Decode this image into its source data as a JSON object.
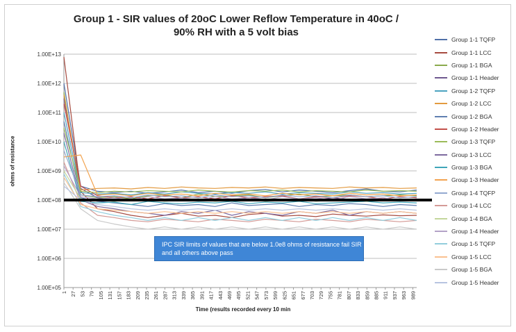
{
  "chart_data": {
    "type": "line",
    "title": "Group 1 - SIR values of 20oC Lower Reflow Temperature in 40oC / 90% RH with a 5 volt bias",
    "xlabel": "Time (results recorded  every 10 min",
    "ylabel": "ohms of resistance",
    "y_scale": "log",
    "ylim": [
      100000,
      10000000000000
    ],
    "y_ticks": [
      "1.00E+13",
      "1.00E+12",
      "1.00E+11",
      "1.00E+10",
      "1.00E+09",
      "1.00E+08",
      "1.00E+07",
      "1.00E+06",
      "1.00E+05"
    ],
    "x_ticks": [
      1,
      27,
      53,
      79,
      105,
      131,
      157,
      183,
      209,
      235,
      261,
      287,
      313,
      339,
      365,
      391,
      417,
      443,
      469,
      495,
      521,
      547,
      573,
      599,
      625,
      651,
      677,
      703,
      729,
      755,
      781,
      807,
      833,
      859,
      885,
      911,
      937,
      963,
      989
    ],
    "xlim": [
      1,
      1000
    ],
    "grid": true,
    "legend_position": "right",
    "threshold": {
      "value": 100000000
    },
    "annotation": "IPC SIR limits of values that are  below 1.0e8 ohms of resistance fail SIR and all others above pass",
    "series": [
      {
        "name": "Group 1-1 TQFP",
        "color": "#4f6fa8",
        "values": [
          1000000000000,
          300000000,
          200000000,
          180000000,
          200000000,
          170000000,
          190000000,
          220000000,
          180000000,
          200000000,
          170000000,
          210000000,
          230000000,
          190000000,
          220000000,
          200000000,
          180000000,
          210000000,
          240000000,
          200000000,
          190000000,
          220000000
        ]
      },
      {
        "name": "Group 1-1 LCC",
        "color": "#a64a3f",
        "values": [
          8000000000000,
          200000000,
          50000000,
          40000000,
          30000000,
          25000000,
          30000000,
          35000000,
          28000000,
          30000000,
          25000000,
          32000000,
          35000000,
          28000000,
          30000000,
          27000000,
          33000000,
          30000000,
          28000000,
          31000000,
          29000000,
          30000000
        ]
      },
      {
        "name": "Group 1-1 BGA",
        "color": "#8aaa4c",
        "values": [
          500000000000,
          150000000,
          120000000,
          130000000,
          110000000,
          140000000,
          150000000,
          120000000,
          160000000,
          130000000,
          140000000,
          150000000,
          120000000,
          140000000,
          160000000,
          130000000,
          140000000,
          150000000,
          130000000,
          140000000,
          150000000,
          140000000
        ]
      },
      {
        "name": "Group 1-1 Header",
        "color": "#6e578f",
        "values": [
          300000000000,
          250000000,
          120000000,
          100000000,
          110000000,
          90000000,
          100000000,
          120000000,
          95000000,
          110000000,
          100000000,
          120000000,
          105000000,
          95000000,
          110000000,
          100000000,
          120000000,
          105000000,
          95000000,
          110000000,
          100000000,
          100000000
        ]
      },
      {
        "name": "Group 1-2 TQFP",
        "color": "#4aa3c0",
        "values": [
          100000000000,
          180000000,
          160000000,
          170000000,
          150000000,
          180000000,
          160000000,
          190000000,
          170000000,
          160000000,
          180000000,
          170000000,
          190000000,
          160000000,
          180000000,
          170000000,
          160000000,
          190000000,
          170000000,
          180000000,
          160000000,
          170000000
        ]
      },
      {
        "name": "Group 1-2 LCC",
        "color": "#e39a3f",
        "values": [
          400000000000,
          220000000,
          250000000,
          260000000,
          240000000,
          270000000,
          250000000,
          280000000,
          260000000,
          250000000,
          270000000,
          260000000,
          280000000,
          250000000,
          270000000,
          260000000,
          250000000,
          280000000,
          260000000,
          270000000,
          250000000,
          260000000
        ]
      },
      {
        "name": "Group 1-2 BGA",
        "color": "#5f7fb0",
        "values": [
          50000000000,
          120000000,
          90000000,
          80000000,
          70000000,
          60000000,
          75000000,
          65000000,
          70000000,
          60000000,
          80000000,
          65000000,
          70000000,
          75000000,
          60000000,
          70000000,
          65000000,
          75000000,
          70000000,
          60000000,
          70000000,
          65000000
        ]
      },
      {
        "name": "Group 1-2 Header",
        "color": "#c24f4a",
        "values": [
          200000000000,
          300000000,
          140000000,
          120000000,
          130000000,
          110000000,
          140000000,
          120000000,
          130000000,
          110000000,
          140000000,
          120000000,
          130000000,
          140000000,
          110000000,
          130000000,
          120000000,
          140000000,
          130000000,
          110000000,
          130000000,
          120000000
        ]
      },
      {
        "name": "Group 1-3 TQFP",
        "color": "#9bbb59",
        "values": [
          30000000000,
          200000000,
          180000000,
          200000000,
          190000000,
          210000000,
          200000000,
          190000000,
          220000000,
          200000000,
          190000000,
          210000000,
          200000000,
          220000000,
          190000000,
          210000000,
          200000000,
          190000000,
          220000000,
          200000000,
          210000000,
          200000000
        ]
      },
      {
        "name": "Group 1-3 LCC",
        "color": "#7d6a9e",
        "values": [
          20000000000,
          100000000,
          60000000,
          50000000,
          40000000,
          35000000,
          30000000,
          40000000,
          35000000,
          45000000,
          30000000,
          40000000,
          35000000,
          30000000,
          40000000,
          35000000,
          45000000,
          30000000,
          40000000,
          35000000,
          40000000,
          35000000
        ]
      },
      {
        "name": "Group 1-3 BGA",
        "color": "#3fa5b8",
        "values": [
          10000000000,
          90000000,
          80000000,
          85000000,
          70000000,
          90000000,
          80000000,
          75000000,
          85000000,
          80000000,
          90000000,
          75000000,
          85000000,
          80000000,
          90000000,
          75000000,
          80000000,
          85000000,
          90000000,
          80000000,
          85000000,
          80000000
        ]
      },
      {
        "name": "Group 1-3 Header",
        "color": "#f2a34f",
        "values": [
          3000000000,
          3500000000,
          150000000,
          160000000,
          140000000,
          170000000,
          150000000,
          160000000,
          140000000,
          170000000,
          150000000,
          160000000,
          140000000,
          170000000,
          150000000,
          160000000,
          140000000,
          170000000,
          150000000,
          160000000,
          140000000,
          150000000
        ]
      },
      {
        "name": "Group 1-4 TQFP",
        "color": "#93a9d0",
        "values": [
          5000000000,
          150000000,
          130000000,
          140000000,
          120000000,
          150000000,
          130000000,
          140000000,
          120000000,
          150000000,
          130000000,
          140000000,
          120000000,
          150000000,
          130000000,
          140000000,
          120000000,
          150000000,
          130000000,
          140000000,
          120000000,
          130000000
        ]
      },
      {
        "name": "Group 1-4 LCC",
        "color": "#d49a96",
        "values": [
          2000000000,
          80000000,
          30000000,
          25000000,
          20000000,
          18000000,
          22000000,
          20000000,
          18000000,
          22000000,
          20000000,
          18000000,
          22000000,
          20000000,
          18000000,
          22000000,
          20000000,
          18000000,
          22000000,
          20000000,
          18000000,
          20000000
        ]
      },
      {
        "name": "Group 1-4 BGA",
        "color": "#c3d69b",
        "values": [
          1000000000,
          110000000,
          100000000,
          90000000,
          100000000,
          110000000,
          90000000,
          100000000,
          110000000,
          90000000,
          100000000,
          110000000,
          90000000,
          100000000,
          110000000,
          90000000,
          100000000,
          110000000,
          90000000,
          100000000,
          110000000,
          100000000
        ]
      },
      {
        "name": "Group 1-4 Header",
        "color": "#b3a2c7",
        "values": [
          1500000000,
          130000000,
          110000000,
          120000000,
          100000000,
          130000000,
          110000000,
          120000000,
          100000000,
          130000000,
          110000000,
          120000000,
          100000000,
          130000000,
          110000000,
          120000000,
          100000000,
          130000000,
          110000000,
          120000000,
          100000000,
          110000000
        ]
      },
      {
        "name": "Group 1-5 TQFP",
        "color": "#92cddc",
        "values": [
          800000000,
          60000000,
          40000000,
          30000000,
          25000000,
          20000000,
          25000000,
          20000000,
          25000000,
          20000000,
          25000000,
          20000000,
          25000000,
          20000000,
          25000000,
          20000000,
          25000000,
          20000000,
          25000000,
          20000000,
          25000000,
          20000000
        ]
      },
      {
        "name": "Group 1-5 LCC",
        "color": "#fac08f",
        "values": [
          600000000,
          70000000,
          50000000,
          45000000,
          40000000,
          35000000,
          40000000,
          35000000,
          40000000,
          35000000,
          40000000,
          35000000,
          40000000,
          35000000,
          40000000,
          35000000,
          40000000,
          35000000,
          40000000,
          35000000,
          40000000,
          35000000
        ]
      },
      {
        "name": "Group 1-5 BGA",
        "color": "#c9c9c9",
        "values": [
          400000000,
          50000000,
          20000000,
          15000000,
          12000000,
          10000000,
          12000000,
          10000000,
          12000000,
          10000000,
          12000000,
          10000000,
          12000000,
          10000000,
          12000000,
          10000000,
          12000000,
          10000000,
          12000000,
          10000000,
          12000000,
          10000000
        ]
      },
      {
        "name": "Group 1-5 Header",
        "color": "#b7c4e0",
        "values": [
          300000000,
          100000000,
          70000000,
          60000000,
          50000000,
          45000000,
          50000000,
          45000000,
          50000000,
          45000000,
          50000000,
          45000000,
          50000000,
          45000000,
          50000000,
          45000000,
          50000000,
          45000000,
          50000000,
          45000000,
          50000000,
          45000000
        ]
      }
    ]
  }
}
